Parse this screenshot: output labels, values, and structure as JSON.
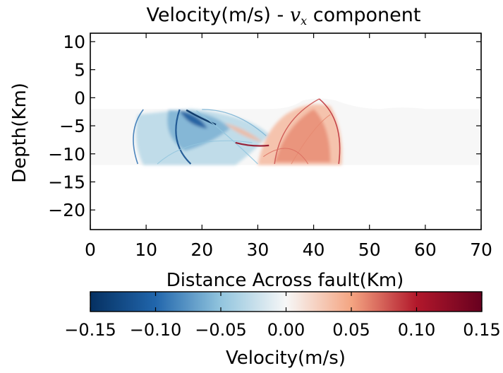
{
  "chart_data": {
    "type": "heatmap",
    "title_prefix": "Velocity(m/s) - ",
    "title_var": "v",
    "title_sub": "x",
    "title_suffix": " component",
    "xlabel": "Distance Across fault(Km)",
    "ylabel": "Depth(Km)",
    "xlim": [
      0,
      70
    ],
    "ylim": [
      -23.5,
      11.5
    ],
    "xticks": [
      {
        "value": 0,
        "label": "0"
      },
      {
        "value": 10,
        "label": "10"
      },
      {
        "value": 20,
        "label": "20"
      },
      {
        "value": 30,
        "label": "30"
      },
      {
        "value": 40,
        "label": "40"
      },
      {
        "value": 50,
        "label": "50"
      },
      {
        "value": 60,
        "label": "60"
      },
      {
        "value": 70,
        "label": "70"
      }
    ],
    "yticks": [
      {
        "value": 10,
        "label": "10"
      },
      {
        "value": 5,
        "label": "5"
      },
      {
        "value": 0,
        "label": "0"
      },
      {
        "value": -5,
        "label": "−5"
      },
      {
        "value": -10,
        "label": "−10"
      },
      {
        "value": -15,
        "label": "−15"
      },
      {
        "value": -20,
        "label": "−20"
      }
    ],
    "grid": false,
    "field": {
      "domain_x": [
        0,
        70
      ],
      "domain_y_bottom": -12,
      "domain_top_flat": -2,
      "uplift_peak": {
        "x": 41,
        "depth": 0
      },
      "negative_wavefront": {
        "x_min": 8,
        "x_max": 32,
        "depth_min": -12,
        "depth_max": -2,
        "min_value": -0.15
      },
      "positive_wavefront": {
        "x_min": 30,
        "x_max": 45,
        "depth_min": -12,
        "depth_max": 0,
        "max_value": 0.15
      },
      "background_value": 0.0
    },
    "colorbar": {
      "label": "Velocity(m/s)",
      "colormap": "RdBu_r",
      "range": [
        -0.15,
        0.15
      ],
      "ticks": [
        {
          "value": -0.15,
          "label": "−0.15"
        },
        {
          "value": -0.1,
          "label": "−0.10"
        },
        {
          "value": -0.05,
          "label": "−0.05"
        },
        {
          "value": 0.0,
          "label": "0.00"
        },
        {
          "value": 0.05,
          "label": "0.05"
        },
        {
          "value": 0.1,
          "label": "0.10"
        },
        {
          "value": 0.15,
          "label": "0.15"
        }
      ],
      "colors": {
        "neg_dark": "#053061",
        "neg_mid": "#2166ac",
        "neg_light": "#92c5de",
        "zero": "#f7f7f7",
        "pos_light": "#f4a582",
        "pos_mid": "#b2182b",
        "pos_dark": "#67001f"
      }
    }
  }
}
